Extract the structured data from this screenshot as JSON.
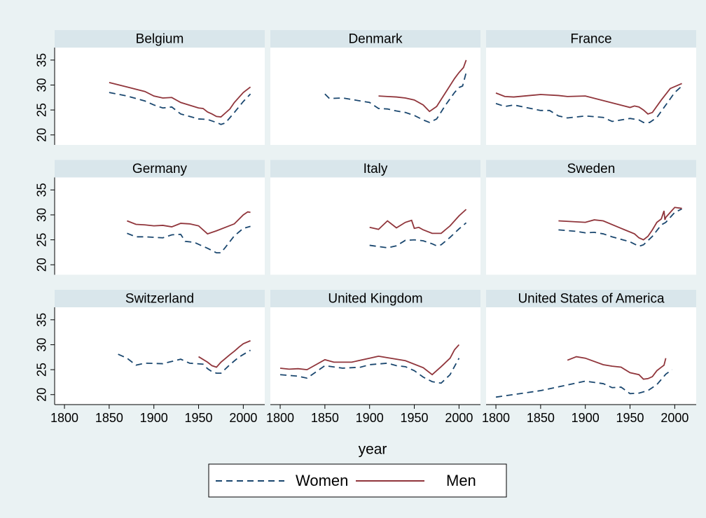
{
  "chart_data": {
    "type": "line",
    "xlabel": "year",
    "xlim": [
      1789,
      2024
    ],
    "xticks": [
      1800,
      1850,
      1900,
      1950,
      2000
    ],
    "ylim": [
      18,
      37.5
    ],
    "yticks": [
      20,
      25,
      30,
      35
    ],
    "legend": "bottom",
    "series": [
      {
        "name": "Women",
        "color": "#1a476f",
        "dashed": true
      },
      {
        "name": "Men",
        "color": "#90353b",
        "dashed": false
      }
    ],
    "panels": [
      {
        "title": "Belgium",
        "series": [
          {
            "x": [
              1850,
              1870,
              1890,
              1900,
              1910,
              1920,
              1930,
              1950,
              1960,
              1970,
              1975,
              1980,
              1990,
              2000,
              2008
            ],
            "values": [
              28.5,
              27.8,
              26.8,
              26,
              25.4,
              25.6,
              24.2,
              23.2,
              23.1,
              22.5,
              22.1,
              22.4,
              24.5,
              26.7,
              28.2
            ]
          },
          {
            "x": [
              1850,
              1870,
              1890,
              1900,
              1910,
              1920,
              1930,
              1950,
              1955,
              1960,
              1965,
              1970,
              1975,
              1980,
              1985,
              1990,
              2000,
              2008
            ],
            "values": [
              30.5,
              29.6,
              28.7,
              27.8,
              27.4,
              27.5,
              26.5,
              25.4,
              25.3,
              24.6,
              24.2,
              23.7,
              23.6,
              24.4,
              25.2,
              26.5,
              28.5,
              29.6
            ]
          }
        ]
      },
      {
        "title": "Denmark",
        "series": [
          {
            "x": [
              1850,
              1855,
              1870,
              1890,
              1900,
              1910,
              1920,
              1930,
              1940,
              1950,
              1960,
              1967,
              1975,
              1985,
              1995,
              2000,
              2004,
              2008
            ],
            "values": [
              28.2,
              27.3,
              27.4,
              26.8,
              26.5,
              25.3,
              25.2,
              24.8,
              24.5,
              23.9,
              23,
              22.5,
              23.2,
              26,
              28.5,
              29.5,
              29.8,
              32.5
            ]
          },
          {
            "x": [
              1910,
              1920,
              1930,
              1940,
              1950,
              1960,
              1967,
              1975,
              1985,
              1995,
              2000,
              2005,
              2008
            ],
            "values": [
              27.8,
              27.7,
              27.6,
              27.4,
              27,
              26,
              24.7,
              25.7,
              28.5,
              31.3,
              32.5,
              33.5,
              35
            ]
          }
        ]
      },
      {
        "title": "France",
        "series": [
          {
            "x": [
              1800,
              1810,
              1820,
              1850,
              1860,
              1870,
              1880,
              1900,
              1920,
              1930,
              1950,
              1960,
              1965,
              1972,
              1980,
              1990,
              2000,
              2008
            ],
            "values": [
              26.3,
              25.7,
              26,
              24.9,
              24.9,
              23.8,
              23.4,
              23.8,
              23.5,
              22.7,
              23.3,
              23,
              22.5,
              22.5,
              23.5,
              26,
              28.5,
              29.8
            ]
          },
          {
            "x": [
              1800,
              1810,
              1820,
              1850,
              1870,
              1880,
              1900,
              1950,
              1955,
              1960,
              1965,
              1970,
              1975,
              1985,
              1995,
              2008
            ],
            "values": [
              28.4,
              27.7,
              27.6,
              28.1,
              27.9,
              27.7,
              27.8,
              25.5,
              25.8,
              25.6,
              25,
              24.2,
              24.5,
              27,
              29.3,
              30.3
            ]
          }
        ]
      },
      {
        "title": "Germany",
        "series": [
          {
            "x": [
              1870,
              1880,
              1890,
              1910,
              1920,
              1930,
              1935,
              1945,
              1960,
              1970,
              1975,
              1980,
              1990,
              2000,
              2008
            ],
            "values": [
              26.3,
              25.6,
              25.6,
              25.4,
              26,
              26.1,
              24.7,
              24.5,
              23.3,
              22.4,
              22.4,
              23.5,
              25.8,
              27.3,
              27.7
            ]
          },
          {
            "x": [
              1870,
              1880,
              1890,
              1900,
              1910,
              1920,
              1930,
              1940,
              1950,
              1960,
              1970,
              1990,
              2000,
              2005,
              2008
            ],
            "values": [
              28.8,
              28.1,
              28,
              27.8,
              27.9,
              27.6,
              28.3,
              28.2,
              27.8,
              26.2,
              26.8,
              28.2,
              30,
              30.6,
              30.5
            ]
          }
        ]
      },
      {
        "title": "Italy",
        "series": [
          {
            "x": [
              1900,
              1920,
              1930,
              1940,
              1950,
              1960,
              1970,
              1975,
              1980,
              1990,
              2000,
              2008
            ],
            "values": [
              23.9,
              23.4,
              23.8,
              24.9,
              25,
              24.8,
              24.2,
              23.8,
              24,
              25.5,
              27.2,
              28.4
            ]
          },
          {
            "x": [
              1900,
              1910,
              1920,
              1930,
              1940,
              1947,
              1950,
              1955,
              1960,
              1970,
              1980,
              1990,
              2000,
              2008
            ],
            "values": [
              27.5,
              27.1,
              28.8,
              27.4,
              28.5,
              28.9,
              27.3,
              27.5,
              27,
              26.3,
              26.3,
              27.8,
              29.8,
              31.1
            ]
          }
        ]
      },
      {
        "title": "Sweden",
        "series": [
          {
            "x": [
              1870,
              1890,
              1900,
              1910,
              1920,
              1930,
              1950,
              1960,
              1965,
              1975,
              1985,
              1990,
              1995,
              2000,
              2008
            ],
            "values": [
              27,
              26.7,
              26.4,
              26.5,
              26.2,
              25.6,
              24.6,
              23.7,
              24,
              25.7,
              28,
              28.5,
              29.5,
              30.5,
              31.2
            ]
          },
          {
            "x": [
              1870,
              1900,
              1910,
              1920,
              1940,
              1955,
              1960,
              1965,
              1970,
              1975,
              1980,
              1985,
              1988,
              1989,
              1990,
              1995,
              2000,
              2008
            ],
            "values": [
              28.8,
              28.5,
              29,
              28.8,
              27.3,
              26.2,
              25.4,
              25,
              25.7,
              27,
              28.5,
              29.2,
              30.8,
              29,
              29.5,
              30.5,
              31.5,
              31.3
            ]
          }
        ]
      },
      {
        "title": "Switzerland",
        "series": [
          {
            "x": [
              1860,
              1870,
              1880,
              1890,
              1910,
              1930,
              1940,
              1955,
              1960,
              1965,
              1970,
              1975,
              1985,
              1995,
              2008
            ],
            "values": [
              28.1,
              27.3,
              25.9,
              26.3,
              26.2,
              27.1,
              26.3,
              26.1,
              25.2,
              24.6,
              24.3,
              24.3,
              26,
              27.5,
              28.9
            ]
          },
          {
            "x": [
              1950,
              1960,
              1965,
              1970,
              1975,
              1985,
              1990,
              1995,
              2000,
              2008
            ],
            "values": [
              27.6,
              26.5,
              25.8,
              25.5,
              26.5,
              28,
              28.7,
              29.5,
              30.2,
              30.8
            ]
          }
        ]
      },
      {
        "title": "United Kingdom",
        "series": [
          {
            "x": [
              1800,
              1820,
              1830,
              1850,
              1870,
              1890,
              1900,
              1920,
              1930,
              1940,
              1950,
              1960,
              1970,
              1980,
              1990,
              2000
            ],
            "values": [
              24,
              23.7,
              23.3,
              25.8,
              25.3,
              25.5,
              26,
              26.3,
              25.8,
              25.6,
              24.8,
              23.5,
              22.6,
              22.3,
              24,
              27.3
            ]
          },
          {
            "x": [
              1800,
              1810,
              1820,
              1830,
              1850,
              1860,
              1880,
              1900,
              1910,
              1920,
              1940,
              1960,
              1970,
              1980,
              1990,
              1995,
              2000
            ],
            "values": [
              25.3,
              25.1,
              25.2,
              25,
              27,
              26.5,
              26.5,
              27.3,
              27.7,
              27.4,
              26.8,
              25.4,
              24,
              25.6,
              27.3,
              29,
              30
            ]
          }
        ]
      },
      {
        "title": "United States of America",
        "series": [
          {
            "x": [
              1800,
              1850,
              1900,
              1920,
              1930,
              1940,
              1950,
              1960,
              1970,
              1980,
              1990,
              1997
            ],
            "values": [
              19.5,
              20.8,
              22.7,
              22.2,
              21.4,
              21.5,
              20.2,
              20.3,
              20.8,
              22,
              24.1,
              25
            ]
          },
          {
            "x": [
              1880,
              1890,
              1900,
              1920,
              1930,
              1940,
              1950,
              1960,
              1965,
              1970,
              1975,
              1980,
              1985,
              1988,
              1990
            ],
            "values": [
              26.9,
              27.6,
              27.3,
              26,
              25.7,
              25.5,
              24.4,
              24,
              23.1,
              23.2,
              23.6,
              24.8,
              25.5,
              25.9,
              27.3
            ]
          }
        ]
      }
    ]
  }
}
